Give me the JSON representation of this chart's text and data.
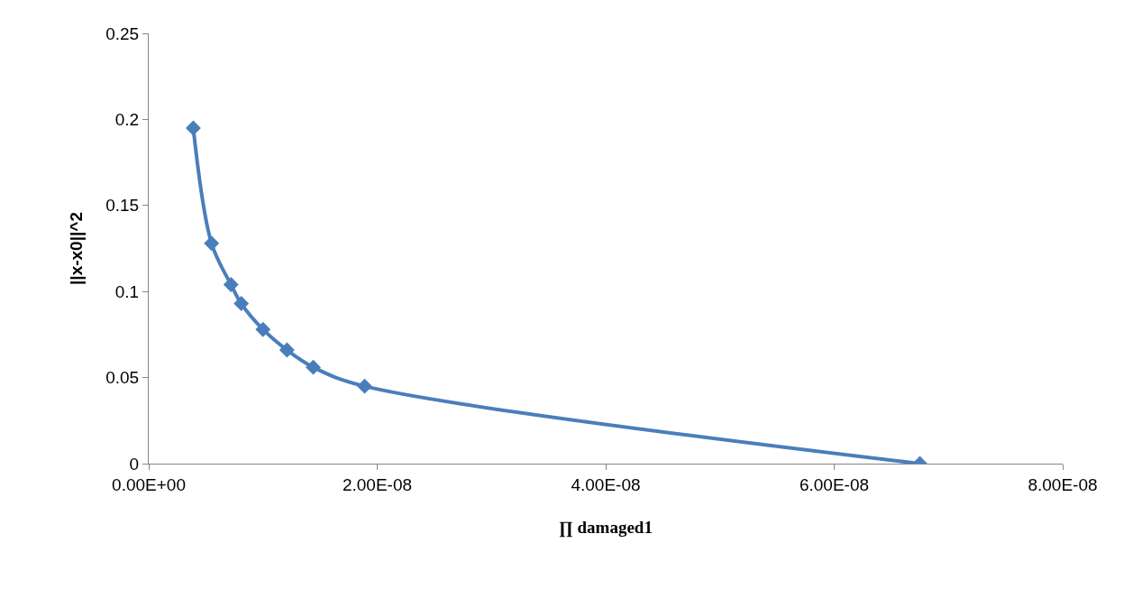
{
  "chart_data": {
    "type": "line",
    "xlabel": "∏ damaged1",
    "ylabel": "||x-x0||^2",
    "x": [
      3.9e-09,
      5.5e-09,
      7.2e-09,
      8.1e-09,
      1e-08,
      1.21e-08,
      1.44e-08,
      1.89e-08,
      6.75e-08
    ],
    "series": [
      {
        "color": "#4a7ebb",
        "values": [
          0.195,
          0.128,
          0.104,
          0.093,
          0.078,
          0.066,
          0.056,
          0.045,
          0.0
        ]
      }
    ],
    "xlim": [
      0,
      8e-08
    ],
    "xticks": [
      {
        "value": 0,
        "label": "0.00E+00"
      },
      {
        "value": 2e-08,
        "label": "2.00E-08"
      },
      {
        "value": 4e-08,
        "label": "4.00E-08"
      },
      {
        "value": 6e-08,
        "label": "6.00E-08"
      },
      {
        "value": 8e-08,
        "label": "8.00E-08"
      }
    ],
    "ylim": [
      0,
      0.25
    ],
    "yticks": [
      0,
      0.05,
      0.1,
      0.15,
      0.2,
      0.25
    ],
    "marker": "diamond",
    "line_style": "solid"
  }
}
